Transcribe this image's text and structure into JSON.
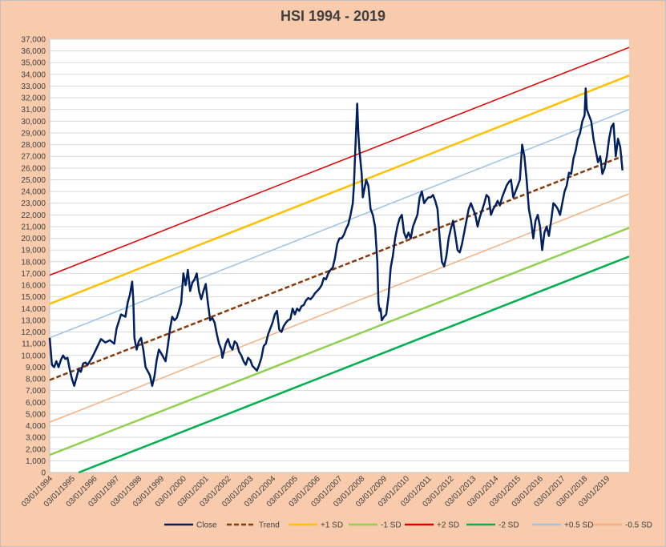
{
  "chart_data": {
    "type": "line",
    "title": "HSI  1994 - 2019",
    "xlabel": "",
    "ylabel": "",
    "ylim": [
      0,
      37000
    ],
    "ytick_step": 1000,
    "xlim": [
      1994.0,
      2020.0
    ],
    "y_ticks": [
      "0",
      "1,000",
      "2,000",
      "3,000",
      "4,000",
      "5,000",
      "6,000",
      "7,000",
      "8,000",
      "9,000",
      "10,000",
      "11,000",
      "12,000",
      "13,000",
      "14,000",
      "15,000",
      "16,000",
      "17,000",
      "18,000",
      "19,000",
      "20,000",
      "21,000",
      "22,000",
      "23,000",
      "24,000",
      "25,000",
      "26,000",
      "27,000",
      "28,000",
      "29,000",
      "30,000",
      "31,000",
      "32,000",
      "33,000",
      "34,000",
      "35,000",
      "36,000",
      "37,000"
    ],
    "x_ticks": [
      "03/01/1994",
      "03/01/1995",
      "03/01/1996",
      "03/01/1997",
      "03/01/1998",
      "03/01/1999",
      "03/01/2000",
      "03/01/2001",
      "03/01/2002",
      "03/01/2003",
      "03/01/2004",
      "03/01/2005",
      "03/01/2006",
      "03/01/2007",
      "03/01/2008",
      "03/01/2009",
      "03/01/2010",
      "03/01/2011",
      "03/01/2012",
      "03/01/2013",
      "03/01/2014",
      "03/01/2015",
      "03/01/2016",
      "03/01/2017",
      "03/01/2018",
      "03/01/2019"
    ],
    "grid": true,
    "legend_position": "bottom",
    "close_series": {
      "name": "Close",
      "color": "#002060",
      "points": [
        [
          1994.0,
          11500
        ],
        [
          1994.1,
          9200
        ],
        [
          1994.2,
          9000
        ],
        [
          1994.3,
          9500
        ],
        [
          1994.4,
          9000
        ],
        [
          1994.5,
          9600
        ],
        [
          1994.6,
          10000
        ],
        [
          1994.7,
          9700
        ],
        [
          1994.8,
          9800
        ],
        [
          1994.9,
          8800
        ],
        [
          1995.0,
          8000
        ],
        [
          1995.1,
          7400
        ],
        [
          1995.2,
          8100
        ],
        [
          1995.3,
          8800
        ],
        [
          1995.4,
          8600
        ],
        [
          1995.5,
          9300
        ],
        [
          1995.6,
          9400
        ],
        [
          1995.7,
          9200
        ],
        [
          1995.8,
          9500
        ],
        [
          1995.9,
          9800
        ],
        [
          1996.0,
          10200
        ],
        [
          1996.2,
          11000
        ],
        [
          1996.3,
          11400
        ],
        [
          1996.5,
          11100
        ],
        [
          1996.7,
          11300
        ],
        [
          1996.9,
          11000
        ],
        [
          1997.0,
          12300
        ],
        [
          1997.2,
          13500
        ],
        [
          1997.4,
          13300
        ],
        [
          1997.5,
          14500
        ],
        [
          1997.6,
          15200
        ],
        [
          1997.7,
          16300
        ],
        [
          1997.75,
          14800
        ],
        [
          1997.8,
          11500
        ],
        [
          1997.9,
          10500
        ],
        [
          1998.0,
          11200
        ],
        [
          1998.1,
          11500
        ],
        [
          1998.2,
          10500
        ],
        [
          1998.3,
          9000
        ],
        [
          1998.5,
          8300
        ],
        [
          1998.6,
          7400
        ],
        [
          1998.7,
          8200
        ],
        [
          1998.8,
          9600
        ],
        [
          1998.9,
          10500
        ],
        [
          1999.0,
          10200
        ],
        [
          1999.2,
          9500
        ],
        [
          1999.3,
          10800
        ],
        [
          1999.4,
          12300
        ],
        [
          1999.5,
          13300
        ],
        [
          1999.6,
          13000
        ],
        [
          1999.7,
          13200
        ],
        [
          1999.8,
          13800
        ],
        [
          1999.9,
          14500
        ],
        [
          2000.0,
          17000
        ],
        [
          2000.1,
          16000
        ],
        [
          2000.2,
          17300
        ],
        [
          2000.3,
          15500
        ],
        [
          2000.4,
          16200
        ],
        [
          2000.5,
          16500
        ],
        [
          2000.6,
          17000
        ],
        [
          2000.7,
          15500
        ],
        [
          2000.8,
          14800
        ],
        [
          2000.9,
          15500
        ],
        [
          2001.0,
          16100
        ],
        [
          2001.1,
          14500
        ],
        [
          2001.2,
          13000
        ],
        [
          2001.3,
          13200
        ],
        [
          2001.4,
          12800
        ],
        [
          2001.5,
          11800
        ],
        [
          2001.6,
          11000
        ],
        [
          2001.7,
          10500
        ],
        [
          2001.75,
          9800
        ],
        [
          2001.8,
          10200
        ],
        [
          2001.9,
          11000
        ],
        [
          2002.0,
          11400
        ],
        [
          2002.1,
          10800
        ],
        [
          2002.2,
          10500
        ],
        [
          2002.3,
          11200
        ],
        [
          2002.4,
          11000
        ],
        [
          2002.5,
          10300
        ],
        [
          2002.6,
          10000
        ],
        [
          2002.7,
          9500
        ],
        [
          2002.8,
          9200
        ],
        [
          2002.9,
          9800
        ],
        [
          2003.0,
          9600
        ],
        [
          2003.1,
          9100
        ],
        [
          2003.2,
          8900
        ],
        [
          2003.3,
          8700
        ],
        [
          2003.4,
          9200
        ],
        [
          2003.5,
          9800
        ],
        [
          2003.6,
          10800
        ],
        [
          2003.7,
          11000
        ],
        [
          2003.8,
          11800
        ],
        [
          2003.9,
          12300
        ],
        [
          2004.0,
          12800
        ],
        [
          2004.1,
          13500
        ],
        [
          2004.2,
          13800
        ],
        [
          2004.3,
          12200
        ],
        [
          2004.4,
          12000
        ],
        [
          2004.5,
          12500
        ],
        [
          2004.6,
          12800
        ],
        [
          2004.7,
          13000
        ],
        [
          2004.8,
          13100
        ],
        [
          2004.9,
          14000
        ],
        [
          2005.0,
          13500
        ],
        [
          2005.1,
          14000
        ],
        [
          2005.2,
          13800
        ],
        [
          2005.3,
          14200
        ],
        [
          2005.4,
          14300
        ],
        [
          2005.5,
          14700
        ],
        [
          2005.6,
          14900
        ],
        [
          2005.7,
          14800
        ],
        [
          2005.8,
          15000
        ],
        [
          2005.9,
          15300
        ],
        [
          2006.0,
          15500
        ],
        [
          2006.1,
          15700
        ],
        [
          2006.2,
          16000
        ],
        [
          2006.3,
          16600
        ],
        [
          2006.4,
          16500
        ],
        [
          2006.5,
          17000
        ],
        [
          2006.6,
          17300
        ],
        [
          2006.7,
          17500
        ],
        [
          2006.8,
          18300
        ],
        [
          2006.9,
          19500
        ],
        [
          2007.0,
          20000
        ],
        [
          2007.1,
          20000
        ],
        [
          2007.2,
          20300
        ],
        [
          2007.3,
          20800
        ],
        [
          2007.4,
          21200
        ],
        [
          2007.5,
          22000
        ],
        [
          2007.6,
          23000
        ],
        [
          2007.65,
          24500
        ],
        [
          2007.7,
          27000
        ],
        [
          2007.8,
          31500
        ],
        [
          2007.85,
          29000
        ],
        [
          2007.9,
          27500
        ],
        [
          2008.0,
          25500
        ],
        [
          2008.05,
          23500
        ],
        [
          2008.1,
          24000
        ],
        [
          2008.2,
          25000
        ],
        [
          2008.3,
          24500
        ],
        [
          2008.4,
          22500
        ],
        [
          2008.5,
          22000
        ],
        [
          2008.6,
          21000
        ],
        [
          2008.7,
          18000
        ],
        [
          2008.75,
          14500
        ],
        [
          2008.8,
          13800
        ],
        [
          2008.85,
          14000
        ],
        [
          2008.9,
          13000
        ],
        [
          2009.0,
          13300
        ],
        [
          2009.1,
          13500
        ],
        [
          2009.2,
          15000
        ],
        [
          2009.3,
          17500
        ],
        [
          2009.4,
          18500
        ],
        [
          2009.5,
          20000
        ],
        [
          2009.6,
          21000
        ],
        [
          2009.7,
          21700
        ],
        [
          2009.8,
          22000
        ],
        [
          2009.9,
          20500
        ],
        [
          2010.0,
          20000
        ],
        [
          2010.1,
          20500
        ],
        [
          2010.2,
          20000
        ],
        [
          2010.3,
          21000
        ],
        [
          2010.4,
          21500
        ],
        [
          2010.5,
          22000
        ],
        [
          2010.6,
          23500
        ],
        [
          2010.7,
          24000
        ],
        [
          2010.8,
          23000
        ],
        [
          2010.9,
          23300
        ],
        [
          2011.0,
          23500
        ],
        [
          2011.1,
          23500
        ],
        [
          2011.2,
          23700
        ],
        [
          2011.3,
          23200
        ],
        [
          2011.4,
          22500
        ],
        [
          2011.5,
          20000
        ],
        [
          2011.6,
          18000
        ],
        [
          2011.7,
          17600
        ],
        [
          2011.8,
          18500
        ],
        [
          2011.9,
          20000
        ],
        [
          2012.0,
          20800
        ],
        [
          2012.1,
          21500
        ],
        [
          2012.2,
          20300
        ],
        [
          2012.3,
          19000
        ],
        [
          2012.4,
          18800
        ],
        [
          2012.5,
          19500
        ],
        [
          2012.6,
          20500
        ],
        [
          2012.7,
          21500
        ],
        [
          2012.8,
          22500
        ],
        [
          2012.9,
          23000
        ],
        [
          2013.0,
          22500
        ],
        [
          2013.1,
          22000
        ],
        [
          2013.2,
          21000
        ],
        [
          2013.3,
          21800
        ],
        [
          2013.4,
          22400
        ],
        [
          2013.5,
          23000
        ],
        [
          2013.6,
          23700
        ],
        [
          2013.7,
          23500
        ],
        [
          2013.8,
          22000
        ],
        [
          2013.9,
          22500
        ],
        [
          2014.0,
          22800
        ],
        [
          2014.1,
          23200
        ],
        [
          2014.2,
          22800
        ],
        [
          2014.3,
          23500
        ],
        [
          2014.4,
          24000
        ],
        [
          2014.5,
          24500
        ],
        [
          2014.6,
          24800
        ],
        [
          2014.7,
          25000
        ],
        [
          2014.8,
          23500
        ],
        [
          2014.9,
          24000
        ],
        [
          2015.0,
          24500
        ],
        [
          2015.1,
          25000
        ],
        [
          2015.2,
          28000
        ],
        [
          2015.3,
          27000
        ],
        [
          2015.4,
          25000
        ],
        [
          2015.5,
          22500
        ],
        [
          2015.6,
          21500
        ],
        [
          2015.7,
          20000
        ],
        [
          2015.8,
          21500
        ],
        [
          2015.9,
          22000
        ],
        [
          2016.0,
          21000
        ],
        [
          2016.1,
          19000
        ],
        [
          2016.2,
          20500
        ],
        [
          2016.3,
          21000
        ],
        [
          2016.4,
          20200
        ],
        [
          2016.5,
          21500
        ],
        [
          2016.6,
          23000
        ],
        [
          2016.7,
          22800
        ],
        [
          2016.8,
          22500
        ],
        [
          2016.9,
          22000
        ],
        [
          2017.0,
          23000
        ],
        [
          2017.1,
          24000
        ],
        [
          2017.2,
          24500
        ],
        [
          2017.3,
          25600
        ],
        [
          2017.4,
          25500
        ],
        [
          2017.5,
          26800
        ],
        [
          2017.6,
          27500
        ],
        [
          2017.7,
          28500
        ],
        [
          2017.8,
          29000
        ],
        [
          2017.9,
          30000
        ],
        [
          2018.0,
          30500
        ],
        [
          2018.05,
          32800
        ],
        [
          2018.1,
          31000
        ],
        [
          2018.2,
          30500
        ],
        [
          2018.3,
          30000
        ],
        [
          2018.4,
          28500
        ],
        [
          2018.5,
          27500
        ],
        [
          2018.6,
          26500
        ],
        [
          2018.7,
          27000
        ],
        [
          2018.8,
          25500
        ],
        [
          2018.9,
          26000
        ],
        [
          2019.0,
          27000
        ],
        [
          2019.1,
          28500
        ],
        [
          2019.2,
          29500
        ],
        [
          2019.3,
          29800
        ],
        [
          2019.4,
          27000
        ],
        [
          2019.5,
          28500
        ],
        [
          2019.6,
          27800
        ],
        [
          2019.7,
          25800
        ]
      ]
    },
    "bands": [
      {
        "name": "Trend",
        "color": "#843C0C",
        "dashed": true,
        "width": 2.5,
        "start": [
          1994.0,
          7900
        ],
        "end": [
          2019.7,
          27000
        ]
      },
      {
        "name": "+1 SD",
        "color": "#FFC000",
        "dashed": false,
        "width": 2.5,
        "start": [
          1994.0,
          14400
        ],
        "end": [
          2020.0,
          33900
        ]
      },
      {
        "name": "-1 SD",
        "color": "#92D050",
        "dashed": false,
        "width": 2.5,
        "start": [
          1994.0,
          1500
        ],
        "end": [
          2020.0,
          20900
        ]
      },
      {
        "name": "+2 SD",
        "color": "#E00000",
        "dashed": false,
        "width": 1.5,
        "start": [
          1994.0,
          16850
        ],
        "end": [
          2020.0,
          36300
        ]
      },
      {
        "name": "-2 SD",
        "color": "#00B050",
        "dashed": false,
        "width": 2.5,
        "start": [
          1995.3,
          0
        ],
        "end": [
          2020.0,
          18450
        ]
      },
      {
        "name": "+0.5 SD",
        "color": "#9DC3E6",
        "dashed": false,
        "width": 1.5,
        "start": [
          1994.0,
          11500
        ],
        "end": [
          2020.0,
          31000
        ]
      },
      {
        "name": "-0.5 SD",
        "color": "#F4B183",
        "dashed": false,
        "width": 1.5,
        "start": [
          1994.0,
          4300
        ],
        "end": [
          2020.0,
          23800
        ]
      }
    ],
    "legend": [
      {
        "label": "Close",
        "color": "#002060",
        "dashed": false
      },
      {
        "label": "Trend",
        "color": "#843C0C",
        "dashed": true
      },
      {
        "label": "+1 SD",
        "color": "#FFC000",
        "dashed": false
      },
      {
        "label": "-1 SD",
        "color": "#92D050",
        "dashed": false
      },
      {
        "label": "+2 SD",
        "color": "#E00000",
        "dashed": false
      },
      {
        "label": "-2 SD",
        "color": "#00B050",
        "dashed": false
      },
      {
        "label": "+0.5 SD",
        "color": "#9DC3E6",
        "dashed": false
      },
      {
        "label": "-0.5 SD",
        "color": "#F4B183",
        "dashed": false
      }
    ],
    "colors": {
      "background": "#F8CBAD",
      "plot_area": "#FFFFFF",
      "grid": "#D9D9D9"
    }
  }
}
